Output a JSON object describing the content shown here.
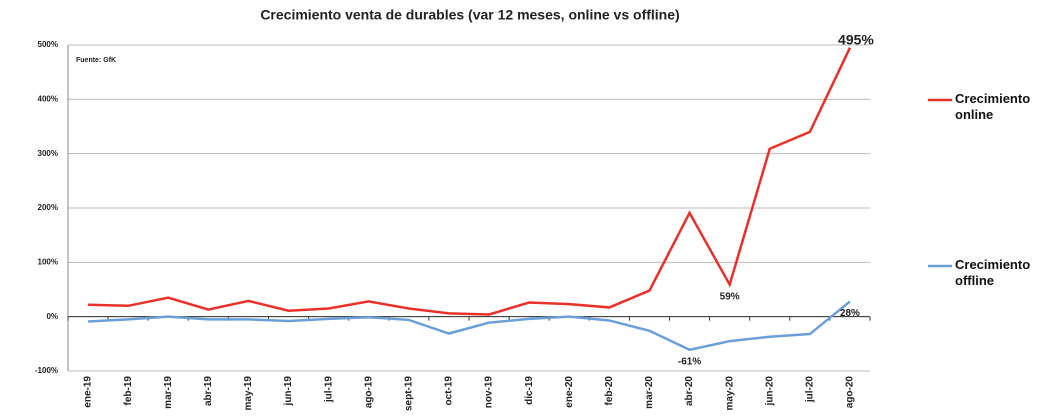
{
  "chart_data": {
    "type": "line",
    "title": "Crecimiento venta de durables (var 12 meses, online vs offline)",
    "source": "Fuente: GfK",
    "categories": [
      "ene-19",
      "feb-19",
      "mar-19",
      "abr-19",
      "may-19",
      "jun-19",
      "jul-19",
      "ago-19",
      "sept-19",
      "oct-19",
      "nov-19",
      "dic-19",
      "ene-20",
      "feb-20",
      "mar-20",
      "abr-20",
      "may-20",
      "jun-20",
      "jul-20",
      "ago-20"
    ],
    "series": [
      {
        "name": "Crecimiento online",
        "color": "#e8312a",
        "values": [
          22,
          20,
          35,
          13,
          29,
          11,
          15,
          28,
          15,
          6,
          4,
          26,
          23,
          17,
          48,
          191,
          59,
          309,
          340,
          495
        ],
        "value_labels": [
          null,
          null,
          null,
          null,
          null,
          null,
          null,
          null,
          null,
          null,
          null,
          null,
          null,
          null,
          null,
          null,
          "59%",
          null,
          null,
          "495%"
        ]
      },
      {
        "name": "Crecimiento offline",
        "color": "#6a9fd8",
        "values": [
          -9,
          -5,
          0,
          -5,
          -5,
          -8,
          -4,
          -1,
          -6,
          -31,
          -11,
          -4,
          0,
          -7,
          -26,
          -61,
          -45,
          -37,
          -32,
          28
        ],
        "value_labels": [
          null,
          null,
          null,
          null,
          null,
          null,
          null,
          null,
          null,
          null,
          null,
          null,
          null,
          null,
          null,
          "-61%",
          null,
          null,
          null,
          "28%"
        ]
      }
    ],
    "ylim": [
      -100,
      500
    ],
    "yticks": [
      {
        "value": -100,
        "label": "-100%"
      },
      {
        "value": 0,
        "label": "0%"
      },
      {
        "value": 100,
        "label": "100%"
      },
      {
        "value": 200,
        "label": "200%"
      },
      {
        "value": 300,
        "label": "300%"
      },
      {
        "value": 400,
        "label": "400%"
      },
      {
        "value": 500,
        "label": "500%"
      }
    ],
    "grid": true,
    "legend": "right"
  }
}
